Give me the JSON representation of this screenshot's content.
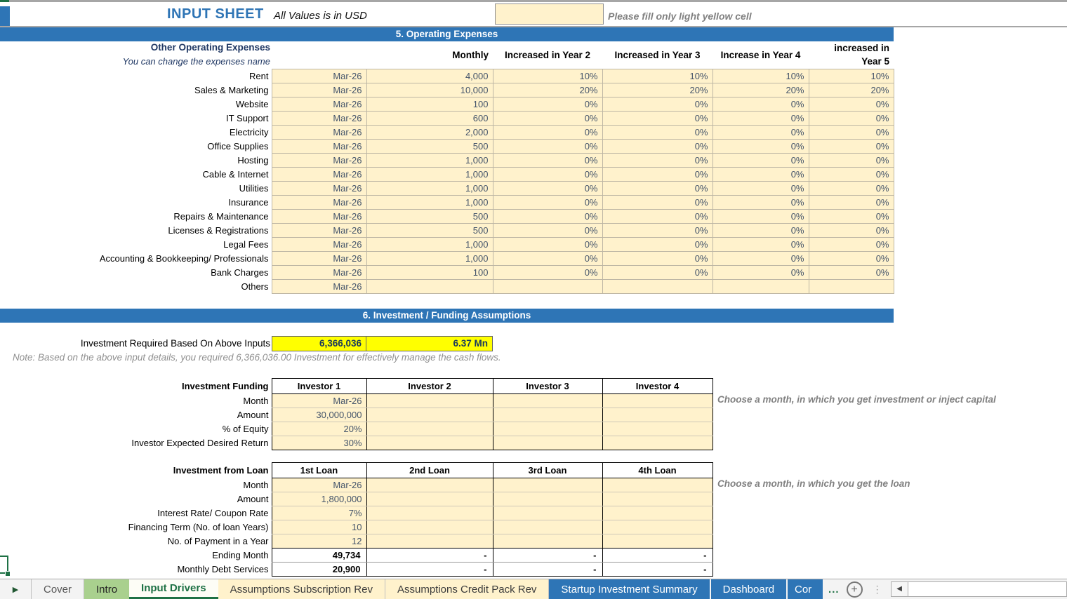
{
  "colors": {
    "accent_blue": "#2E75B6",
    "title_blue": "#2E74B5",
    "input_yellow": "#FFF2CC",
    "highlight_yellow": "#FFFF00",
    "value_text": "#44546A",
    "excel_green": "#1E7145",
    "tab_green": "#A9D08E",
    "hint_gray": "#808080"
  },
  "header": {
    "title": "INPUT SHEET",
    "subtitle": "All Values is in USD",
    "input_value": "",
    "fill_hint": "Please fill only light yellow cell"
  },
  "section5": {
    "band_title": "5. Operating Expenses",
    "label_title": "Other Operating Expenses",
    "label_sub": "You can change the expenses name",
    "col_monthly": "Monthly",
    "col_y2": "Increased in Year 2",
    "col_y3": "Increased in Year 3",
    "col_y4": "Increase in Year 4",
    "col_y5_line1": "increased in",
    "col_y5_line2": "Year 5",
    "rows": [
      {
        "label": "Rent",
        "month": "Mar-26",
        "monthly": "4,000",
        "y2": "10%",
        "y3": "10%",
        "y4": "10%",
        "y5": "10%"
      },
      {
        "label": "Sales & Marketing",
        "month": "Mar-26",
        "monthly": "10,000",
        "y2": "20%",
        "y3": "20%",
        "y4": "20%",
        "y5": "20%"
      },
      {
        "label": "Website",
        "month": "Mar-26",
        "monthly": "100",
        "y2": "0%",
        "y3": "0%",
        "y4": "0%",
        "y5": "0%"
      },
      {
        "label": "IT Support",
        "month": "Mar-26",
        "monthly": "600",
        "y2": "0%",
        "y3": "0%",
        "y4": "0%",
        "y5": "0%"
      },
      {
        "label": "Electricity",
        "month": "Mar-26",
        "monthly": "2,000",
        "y2": "0%",
        "y3": "0%",
        "y4": "0%",
        "y5": "0%"
      },
      {
        "label": "Office Supplies",
        "month": "Mar-26",
        "monthly": "500",
        "y2": "0%",
        "y3": "0%",
        "y4": "0%",
        "y5": "0%"
      },
      {
        "label": "Hosting",
        "month": "Mar-26",
        "monthly": "1,000",
        "y2": "0%",
        "y3": "0%",
        "y4": "0%",
        "y5": "0%"
      },
      {
        "label": "Cable & Internet",
        "month": "Mar-26",
        "monthly": "1,000",
        "y2": "0%",
        "y3": "0%",
        "y4": "0%",
        "y5": "0%"
      },
      {
        "label": "Utilities",
        "month": "Mar-26",
        "monthly": "1,000",
        "y2": "0%",
        "y3": "0%",
        "y4": "0%",
        "y5": "0%"
      },
      {
        "label": "Insurance",
        "month": "Mar-26",
        "monthly": "1,000",
        "y2": "0%",
        "y3": "0%",
        "y4": "0%",
        "y5": "0%"
      },
      {
        "label": "Repairs & Maintenance",
        "month": "Mar-26",
        "monthly": "500",
        "y2": "0%",
        "y3": "0%",
        "y4": "0%",
        "y5": "0%"
      },
      {
        "label": "Licenses & Registrations",
        "month": "Mar-26",
        "monthly": "500",
        "y2": "0%",
        "y3": "0%",
        "y4": "0%",
        "y5": "0%"
      },
      {
        "label": "Legal Fees",
        "month": "Mar-26",
        "monthly": "1,000",
        "y2": "0%",
        "y3": "0%",
        "y4": "0%",
        "y5": "0%"
      },
      {
        "label": "Accounting & Bookkeeping/ Professionals",
        "month": "Mar-26",
        "monthly": "1,000",
        "y2": "0%",
        "y3": "0%",
        "y4": "0%",
        "y5": "0%"
      },
      {
        "label": "Bank Charges",
        "month": "Mar-26",
        "monthly": "100",
        "y2": "0%",
        "y3": "0%",
        "y4": "0%",
        "y5": "0%"
      },
      {
        "label": "Others",
        "month": "Mar-26",
        "monthly": "",
        "y2": "",
        "y3": "",
        "y4": "",
        "y5": ""
      }
    ]
  },
  "section6": {
    "band_title": "6. Investment / Funding Assumptions",
    "required_label": "Investment Required Based On Above Inputs",
    "required_value": "6,366,036",
    "required_mn": "6.37 Mn",
    "note": "Note: Based on the above input details, you required 6,366,036.00 Investment for effectively manage the cash flows.",
    "funding": {
      "title": "Investment Funding",
      "columns": [
        "Investor 1",
        "Investor 2",
        "Investor 3",
        "Investor 4"
      ],
      "hint": "Choose a month, in which you get investment or inject capital",
      "rows": [
        {
          "label": "Month",
          "values": [
            "Mar-26",
            "",
            "",
            ""
          ]
        },
        {
          "label": "Amount",
          "values": [
            "30,000,000",
            "",
            "",
            ""
          ]
        },
        {
          "label": "% of Equity",
          "values": [
            "20%",
            "",
            "",
            ""
          ]
        },
        {
          "label": "Investor Expected Desired Return",
          "values": [
            "30%",
            "",
            "",
            ""
          ]
        }
      ]
    },
    "loan": {
      "title": "Investment from Loan",
      "columns": [
        "1st Loan",
        "2nd Loan",
        "3rd Loan",
        "4th Loan"
      ],
      "hint": "Choose a month, in which you get the loan",
      "rows": [
        {
          "label": "Month",
          "values": [
            "Mar-26",
            "",
            "",
            ""
          ]
        },
        {
          "label": "Amount",
          "values": [
            "1,800,000",
            "",
            "",
            ""
          ]
        },
        {
          "label": "Interest Rate/ Coupon Rate",
          "values": [
            "7%",
            "",
            "",
            ""
          ]
        },
        {
          "label": "Financing Term (No. of loan Years)",
          "values": [
            "10",
            "",
            "",
            ""
          ]
        },
        {
          "label": "No. of Payment in a Year",
          "values": [
            "12",
            "",
            "",
            ""
          ]
        }
      ],
      "result_rows": [
        {
          "label": "Ending Month",
          "values": [
            "49,734",
            "-",
            "-",
            "-"
          ]
        },
        {
          "label": "Monthly Debt Services",
          "values": [
            "20,900",
            "-",
            "-",
            "-"
          ]
        }
      ]
    }
  },
  "tabbar": {
    "tabs": [
      {
        "label": "Cover",
        "style": "plain"
      },
      {
        "label": "Intro",
        "style": "green"
      },
      {
        "label": "Input Drivers",
        "style": "active"
      },
      {
        "label": "Assumptions Subscription Rev",
        "style": "yellow"
      },
      {
        "label": "Assumptions Credit Pack Rev",
        "style": "yellow"
      },
      {
        "label": "Startup Investment Summary",
        "style": "blue"
      },
      {
        "label": "Dashboard",
        "style": "blue"
      },
      {
        "label": "Cor",
        "style": "blue",
        "truncated": true
      }
    ],
    "more_ellipsis": "...",
    "icons": {
      "nav_arrow": "▶",
      "add_sheet": "+",
      "more_dots": "⋮",
      "scroll_left_arrow": "◀"
    }
  }
}
